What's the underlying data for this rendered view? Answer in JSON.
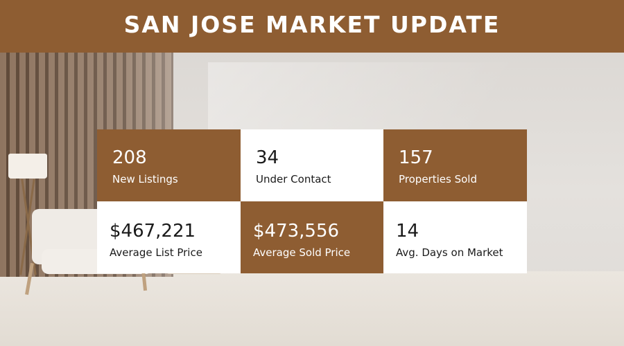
{
  "header": {
    "title": "SAN JOSE MARKET UPDATE"
  },
  "stats": [
    {
      "value": "208",
      "label": "New Listings",
      "style": "brown"
    },
    {
      "value": "34",
      "label": "Under Contact",
      "style": "white"
    },
    {
      "value": "157",
      "label": "Properties Sold",
      "style": "brown"
    },
    {
      "value": "$467,221",
      "label": "Average List Price",
      "style": "white"
    },
    {
      "value": "$473,556",
      "label": "Average Sold Price",
      "style": "brown"
    },
    {
      "value": "14",
      "label": "Avg. Days on Market",
      "style": "white"
    }
  ],
  "colors": {
    "brand": "#8e5d32",
    "tile_light": "#ffffff"
  }
}
